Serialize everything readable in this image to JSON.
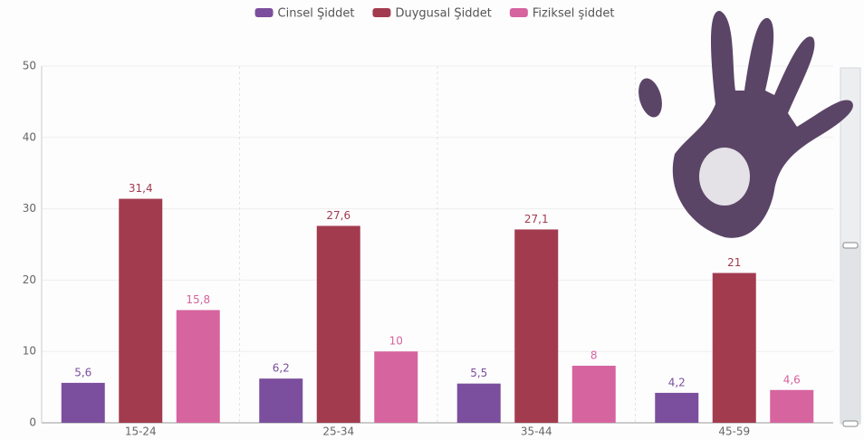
{
  "chart_data": {
    "type": "bar",
    "categories": [
      "15-24",
      "25-34",
      "35-44",
      "45-59"
    ],
    "series": [
      {
        "name": "Cinsel Şiddet",
        "color": "#7b4f9d",
        "values": [
          5.6,
          6.2,
          5.5,
          4.2
        ],
        "value_labels": [
          "5,6",
          "6,2",
          "5,5",
          "4,2"
        ]
      },
      {
        "name": "Duygusal Şiddet",
        "color": "#a33b4f",
        "values": [
          31.4,
          27.6,
          27.1,
          21
        ],
        "value_labels": [
          "31,4",
          "27,6",
          "27,1",
          "21"
        ]
      },
      {
        "name": "Fiziksel şiddet",
        "color": "#d6649e",
        "values": [
          15.8,
          10,
          8,
          4.6
        ],
        "value_labels": [
          "15,8",
          "10",
          "8",
          "4,6"
        ]
      }
    ],
    "ylim": [
      0,
      50
    ],
    "yticks": [
      0,
      10,
      20,
      30,
      40,
      50
    ],
    "grid": true,
    "legend": "top"
  }
}
